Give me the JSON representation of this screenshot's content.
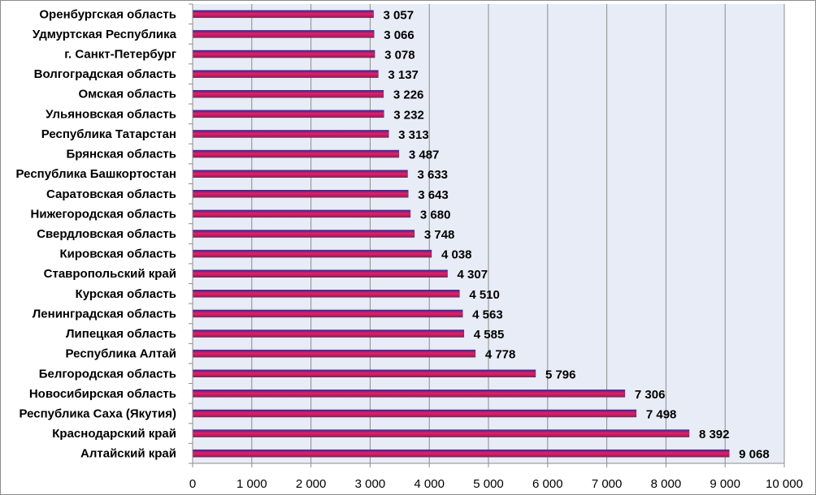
{
  "chart_data": {
    "type": "bar",
    "orientation": "horizontal",
    "categories": [
      "Оренбургская область",
      "Удмуртская Республика",
      "г. Санкт-Петербург",
      "Волгоградская область",
      "Омская область",
      "Ульяновская область",
      "Республика Татарстан",
      "Брянская область",
      "Республика Башкортостан",
      "Саратовская область",
      "Нижегородская область",
      "Свердловская область",
      "Кировская область",
      "Ставропольский край",
      "Курская область",
      "Ленинградская область",
      "Липецкая область",
      "Республика Алтай",
      "Белгородская область",
      "Новосибирская область",
      "Республика Саха (Якутия)",
      "Краснодарский край",
      "Алтайский край"
    ],
    "values": [
      3057,
      3066,
      3078,
      3137,
      3226,
      3232,
      3313,
      3487,
      3633,
      3643,
      3680,
      3748,
      4038,
      4307,
      4510,
      4563,
      4585,
      4778,
      5796,
      7306,
      7498,
      8392,
      9068
    ],
    "value_labels": [
      "3 057",
      "3 066",
      "3 078",
      "3 137",
      "3 226",
      "3 232",
      "3 313",
      "3 487",
      "3 633",
      "3 643",
      "3 680",
      "3 748",
      "4 038",
      "4 307",
      "4 510",
      "4 563",
      "4 585",
      "4 778",
      "5 796",
      "7 306",
      "7 498",
      "8 392",
      "9 068"
    ],
    "xlim": [
      0,
      10000
    ],
    "x_ticks": [
      0,
      1000,
      2000,
      3000,
      4000,
      5000,
      6000,
      7000,
      8000,
      9000,
      10000
    ],
    "x_tick_labels": [
      "0",
      "1 000",
      "2 000",
      "3 000",
      "4 000",
      "5 000",
      "6 000",
      "7 000",
      "8 000",
      "9 000",
      "10 000"
    ],
    "title": "",
    "xlabel": "",
    "ylabel": "",
    "grid": "vertical",
    "legend": "none",
    "colors": {
      "bar_top": "#2a2a9a",
      "bar_mid": "#e0206a",
      "bar_bottom": "#b01050",
      "plot_bg": "#e8ecf6",
      "grid": "#8c8c8c"
    }
  }
}
